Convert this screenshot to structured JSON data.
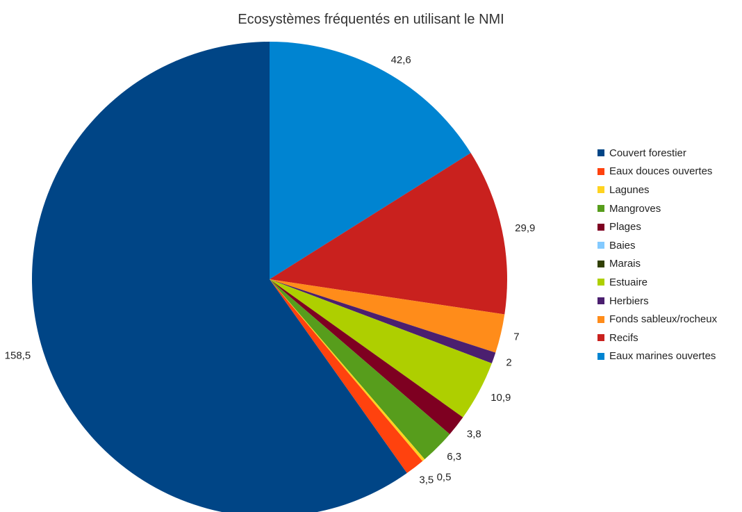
{
  "chart_data": {
    "type": "pie",
    "title": "Ecosystèmes fréquentés en utilisant le NMI",
    "legend_position": "right",
    "start_angle": "top",
    "direction": "clockwise",
    "slices": [
      {
        "name": "Eaux marines ouvertes",
        "value": 42.6,
        "label": "42,6",
        "color": "#0084d1"
      },
      {
        "name": "Recifs",
        "value": 29.9,
        "label": "29,9",
        "color": "#c9211e"
      },
      {
        "name": "Fonds sableux/rocheux",
        "value": 7,
        "label": "7",
        "color": "#ff8c1a"
      },
      {
        "name": "Herbiers",
        "value": 2,
        "label": "2",
        "color": "#4b1f6f"
      },
      {
        "name": "Estuaire",
        "value": 10.9,
        "label": "10,9",
        "color": "#aecf00"
      },
      {
        "name": "Marais",
        "value": 0,
        "label": "",
        "color": "#314004"
      },
      {
        "name": "Baies",
        "value": 0,
        "label": "",
        "color": "#83caff"
      },
      {
        "name": "Plages",
        "value": 3.8,
        "label": "3,8",
        "color": "#7e0021"
      },
      {
        "name": "Mangroves",
        "value": 6.3,
        "label": "6,3",
        "color": "#579d1c"
      },
      {
        "name": "Lagunes",
        "value": 0.5,
        "label": "0,5",
        "color": "#ffd320"
      },
      {
        "name": "Eaux douces ouvertes",
        "value": 3.5,
        "label": "3,5",
        "color": "#ff420e"
      },
      {
        "name": "Couvert forestier",
        "value": 158.5,
        "label": "158,5",
        "color": "#004586"
      }
    ],
    "legend": [
      {
        "name": "Couvert forestier",
        "color": "#004586"
      },
      {
        "name": "Eaux douces ouvertes",
        "color": "#ff420e"
      },
      {
        "name": "Lagunes",
        "color": "#ffd320"
      },
      {
        "name": "Mangroves",
        "color": "#579d1c"
      },
      {
        "name": "Plages",
        "color": "#7e0021"
      },
      {
        "name": "Baies",
        "color": "#83caff"
      },
      {
        "name": "Marais",
        "color": "#314004"
      },
      {
        "name": "Estuaire",
        "color": "#aecf00"
      },
      {
        "name": "Herbiers",
        "color": "#4b1f6f"
      },
      {
        "name": "Fonds sableux/rocheux",
        "color": "#ff8c1a"
      },
      {
        "name": "Recifs",
        "color": "#c9211e"
      },
      {
        "name": "Eaux marines ouvertes",
        "color": "#0084d1"
      }
    ]
  }
}
